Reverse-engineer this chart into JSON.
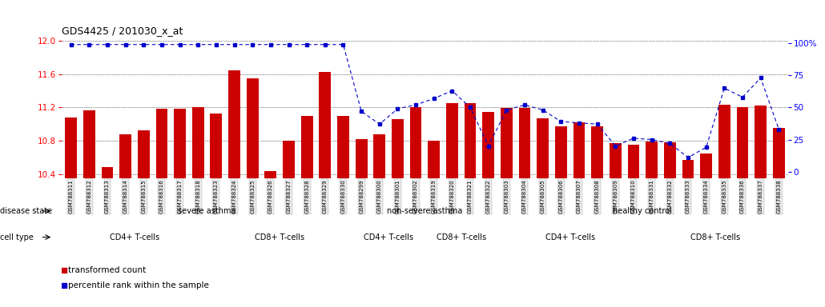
{
  "title": "GDS4425 / 201030_x_at",
  "samples": [
    "GSM788311",
    "GSM788312",
    "GSM788313",
    "GSM788314",
    "GSM788315",
    "GSM788316",
    "GSM788317",
    "GSM788318",
    "GSM788323",
    "GSM788324",
    "GSM788325",
    "GSM788326",
    "GSM788327",
    "GSM788328",
    "GSM788329",
    "GSM788330",
    "GSM788299",
    "GSM788300",
    "GSM788301",
    "GSM788302",
    "GSM788319",
    "GSM788320",
    "GSM788321",
    "GSM788322",
    "GSM788303",
    "GSM788304",
    "GSM788305",
    "GSM788306",
    "GSM788307",
    "GSM788308",
    "GSM788309",
    "GSM788310",
    "GSM788331",
    "GSM788332",
    "GSM788333",
    "GSM788334",
    "GSM788335",
    "GSM788336",
    "GSM788337",
    "GSM788338"
  ],
  "bar_values": [
    11.08,
    11.17,
    10.48,
    10.88,
    10.92,
    11.18,
    11.18,
    11.2,
    11.13,
    11.65,
    11.55,
    10.43,
    10.8,
    11.1,
    11.63,
    11.1,
    10.82,
    10.88,
    11.06,
    11.2,
    10.8,
    11.25,
    11.25,
    11.15,
    11.19,
    11.19,
    11.07,
    10.97,
    11.02,
    10.97,
    10.77,
    10.75,
    10.79,
    10.78,
    10.57,
    10.65,
    11.23,
    11.2,
    11.22,
    10.95
  ],
  "percentile_bar_values": [
    99,
    99,
    99,
    99,
    99,
    99,
    99,
    99,
    99,
    99,
    99,
    99,
    99,
    99,
    99,
    99,
    47,
    37,
    49,
    52,
    57,
    63,
    50,
    20,
    48,
    52,
    48,
    39,
    38,
    37,
    20,
    26,
    25,
    22,
    11,
    19,
    65,
    58,
    73,
    33
  ],
  "bar_color": "#cc0000",
  "percentile_color": "#0000cc",
  "ylim_left": [
    10.35,
    12.05
  ],
  "ylim_right": [
    -5,
    105
  ],
  "yticks_left": [
    10.4,
    10.8,
    11.2,
    11.6,
    12.0
  ],
  "yticks_right": [
    0,
    25,
    50,
    75,
    100
  ],
  "disease_state_groups": [
    {
      "label": "severe asthma",
      "start": 0,
      "end": 15,
      "color": "#aaffaa"
    },
    {
      "label": "non-severe asthma",
      "start": 16,
      "end": 23,
      "color": "#aaffaa"
    },
    {
      "label": "healthy control",
      "start": 24,
      "end": 39,
      "color": "#44cc44"
    }
  ],
  "cell_type_groups": [
    {
      "label": "CD4+ T-cells",
      "start": 0,
      "end": 7,
      "color": "#ffaaff"
    },
    {
      "label": "CD8+ T-cells",
      "start": 8,
      "end": 15,
      "color": "#ee66ee"
    },
    {
      "label": "CD4+ T-cells",
      "start": 16,
      "end": 19,
      "color": "#ffaaff"
    },
    {
      "label": "CD8+ T-cells",
      "start": 20,
      "end": 23,
      "color": "#ee66ee"
    },
    {
      "label": "CD4+ T-cells",
      "start": 24,
      "end": 31,
      "color": "#ffaaff"
    },
    {
      "label": "CD8+ T-cells",
      "start": 32,
      "end": 39,
      "color": "#ee66ee"
    }
  ],
  "disease_state_label": "disease state",
  "cell_type_label": "cell type",
  "legend_bar": "transformed count",
  "legend_percentile": "percentile rank within the sample",
  "background_color": "#ffffff"
}
